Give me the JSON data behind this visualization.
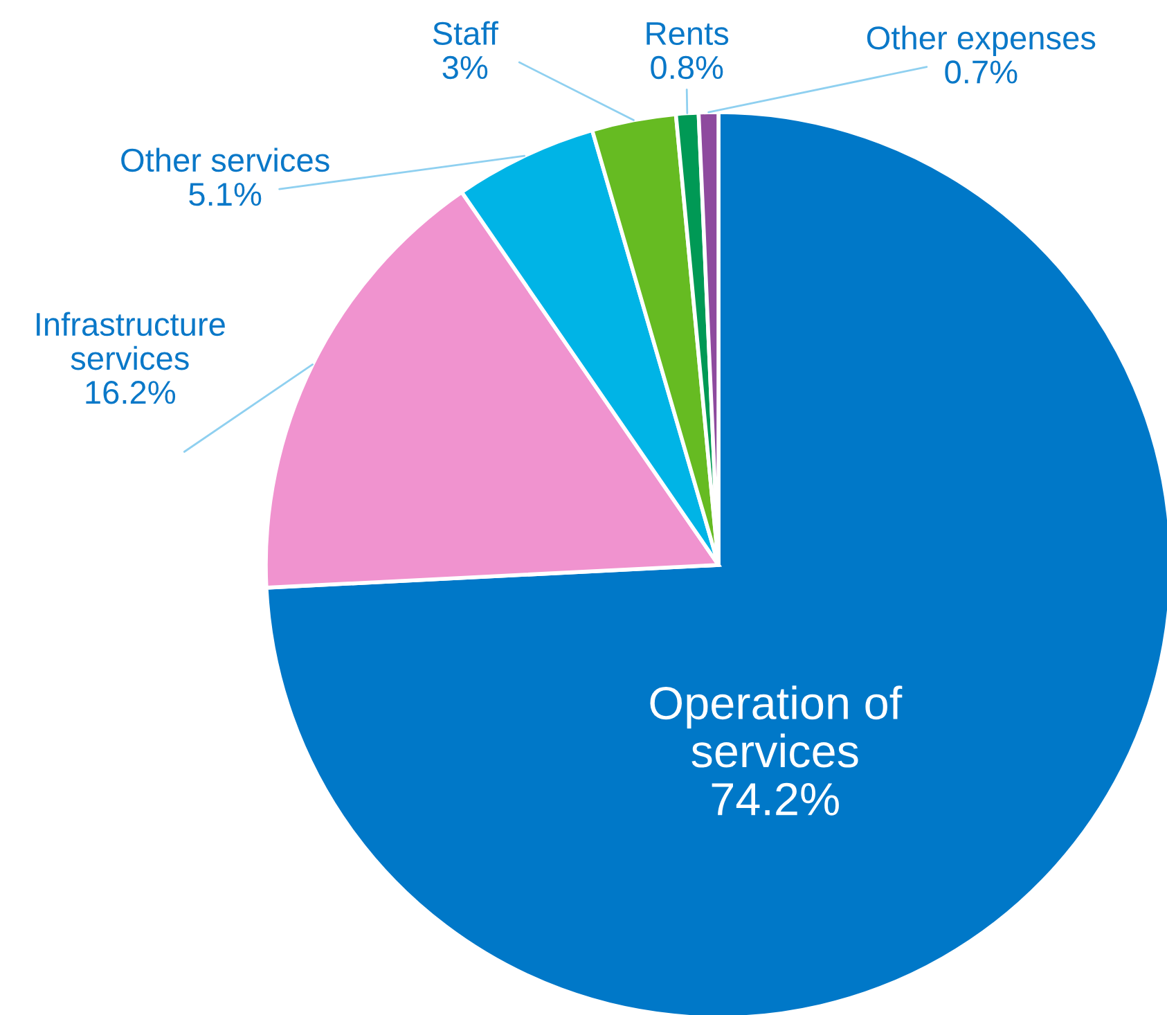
{
  "chart_data": {
    "type": "pie",
    "categories": [
      "Operation of services",
      "Infrastructure services",
      "Other services",
      "Staff",
      "Rents",
      "Other expenses"
    ],
    "values": [
      74.2,
      16.2,
      5.1,
      3,
      0.8,
      0.7
    ],
    "value_labels": [
      "74.2%",
      "16.2%",
      "5.1%",
      "3%",
      "0.8%",
      "0.7%"
    ],
    "colors": [
      "#0078c8",
      "#f093cf",
      "#00b4e6",
      "#66bb22",
      "#009955",
      "#8e4a9e"
    ],
    "legend": false
  }
}
